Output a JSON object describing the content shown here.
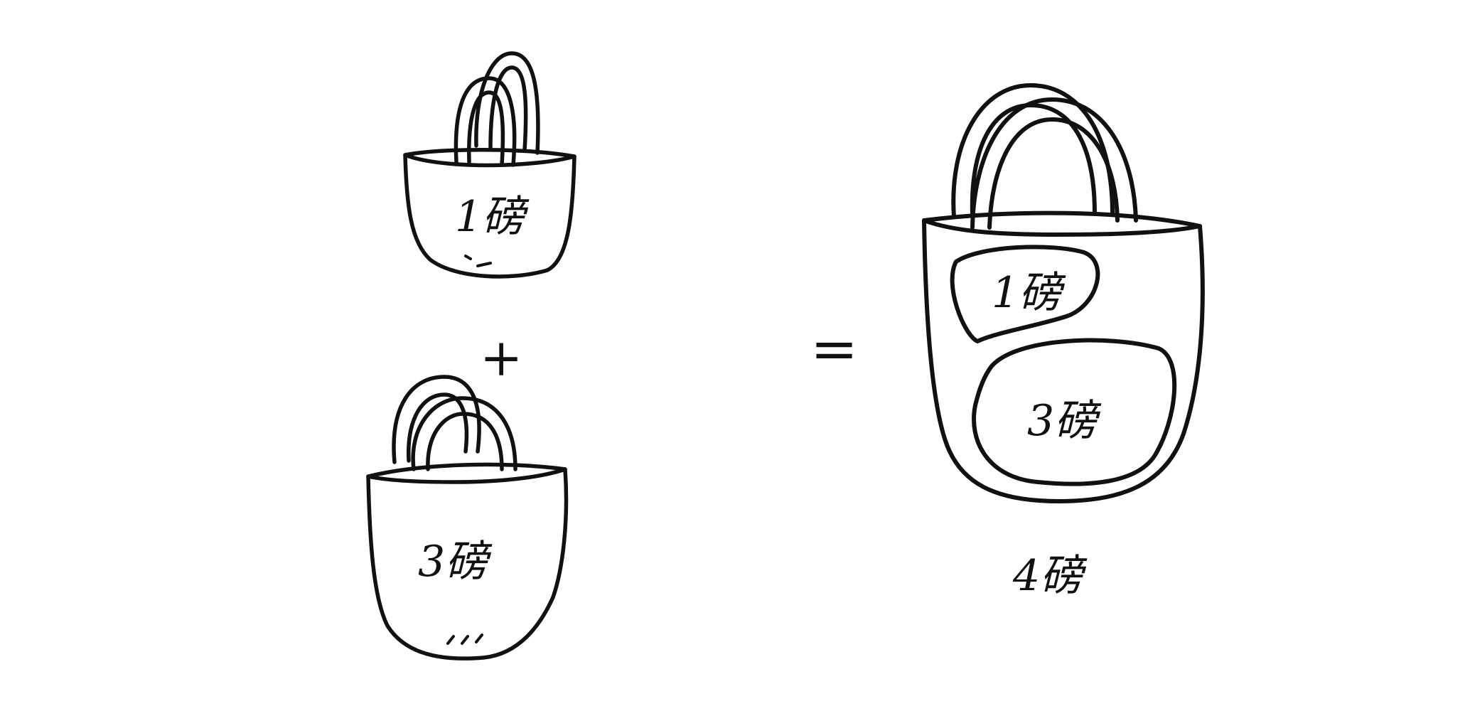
{
  "colors": {
    "ink": "#111111",
    "background": "#ffffff"
  },
  "bags": {
    "small_top": {
      "label": "1磅"
    },
    "small_bottom": {
      "label": "3磅"
    },
    "big": {
      "pocket_top": {
        "label": "1磅"
      },
      "pocket_bottom": {
        "label": "3磅"
      },
      "total_label": "4磅"
    }
  },
  "operators": {
    "plus": "+",
    "equals": "="
  }
}
